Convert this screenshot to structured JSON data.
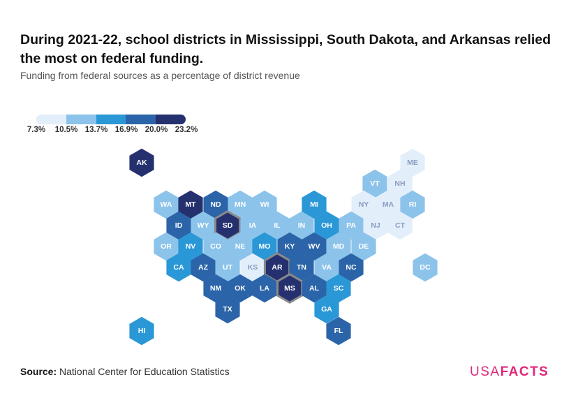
{
  "title": "During 2021-22, school districts in Mississippi, South Dakota, and Arkansas relied the most on federal funding.",
  "subtitle": "Funding from federal sources as a percentage of district revenue",
  "legend": {
    "colors": [
      "#e3eefb",
      "#8cc3ea",
      "#2a97d6",
      "#2b64a8",
      "#25316f"
    ],
    "labels": [
      "7.3%",
      "10.5%",
      "13.7%",
      "16.9%",
      "20.0%",
      "23.2%"
    ]
  },
  "chart_data": {
    "type": "heatmap",
    "bins": [
      {
        "min": 7.3,
        "max": 10.5,
        "color": "#e3eefb"
      },
      {
        "min": 10.5,
        "max": 13.7,
        "color": "#8cc3ea"
      },
      {
        "min": 13.7,
        "max": 16.9,
        "color": "#2a97d6"
      },
      {
        "min": 16.9,
        "max": 20.0,
        "color": "#2b64a8"
      },
      {
        "min": 20.0,
        "max": 23.2,
        "color": "#25316f"
      }
    ],
    "highlighted": [
      "SD",
      "AR",
      "MS"
    ],
    "states": [
      {
        "state": "AK",
        "bin": 4
      },
      {
        "state": "ME",
        "bin": 0
      },
      {
        "state": "VT",
        "bin": 1
      },
      {
        "state": "NH",
        "bin": 0
      },
      {
        "state": "WA",
        "bin": 1
      },
      {
        "state": "MT",
        "bin": 4
      },
      {
        "state": "ND",
        "bin": 3
      },
      {
        "state": "MN",
        "bin": 1
      },
      {
        "state": "WI",
        "bin": 1
      },
      {
        "state": "MI",
        "bin": 2
      },
      {
        "state": "NY",
        "bin": 0
      },
      {
        "state": "MA",
        "bin": 0
      },
      {
        "state": "RI",
        "bin": 1
      },
      {
        "state": "ID",
        "bin": 3
      },
      {
        "state": "WY",
        "bin": 1
      },
      {
        "state": "SD",
        "bin": 4
      },
      {
        "state": "IA",
        "bin": 1
      },
      {
        "state": "IL",
        "bin": 1
      },
      {
        "state": "IN",
        "bin": 1
      },
      {
        "state": "OH",
        "bin": 2
      },
      {
        "state": "PA",
        "bin": 1
      },
      {
        "state": "NJ",
        "bin": 0
      },
      {
        "state": "CT",
        "bin": 0
      },
      {
        "state": "OR",
        "bin": 1
      },
      {
        "state": "NV",
        "bin": 2
      },
      {
        "state": "CO",
        "bin": 1
      },
      {
        "state": "NE",
        "bin": 1
      },
      {
        "state": "MO",
        "bin": 2
      },
      {
        "state": "KY",
        "bin": 3
      },
      {
        "state": "WV",
        "bin": 3
      },
      {
        "state": "MD",
        "bin": 1
      },
      {
        "state": "DE",
        "bin": 1
      },
      {
        "state": "CA",
        "bin": 2
      },
      {
        "state": "AZ",
        "bin": 3
      },
      {
        "state": "UT",
        "bin": 1
      },
      {
        "state": "KS",
        "bin": 0
      },
      {
        "state": "AR",
        "bin": 4
      },
      {
        "state": "TN",
        "bin": 3
      },
      {
        "state": "VA",
        "bin": 1
      },
      {
        "state": "NC",
        "bin": 3
      },
      {
        "state": "DC",
        "bin": 1
      },
      {
        "state": "NM",
        "bin": 3
      },
      {
        "state": "OK",
        "bin": 3
      },
      {
        "state": "LA",
        "bin": 3
      },
      {
        "state": "MS",
        "bin": 4
      },
      {
        "state": "AL",
        "bin": 3
      },
      {
        "state": "SC",
        "bin": 2
      },
      {
        "state": "TX",
        "bin": 3
      },
      {
        "state": "GA",
        "bin": 2
      },
      {
        "state": "HI",
        "bin": 2
      },
      {
        "state": "FL",
        "bin": 3
      }
    ]
  },
  "source": {
    "label": "Source:",
    "text": "National Center for Education Statistics"
  },
  "logo": {
    "part1": "USA",
    "part2": "FACTS"
  }
}
